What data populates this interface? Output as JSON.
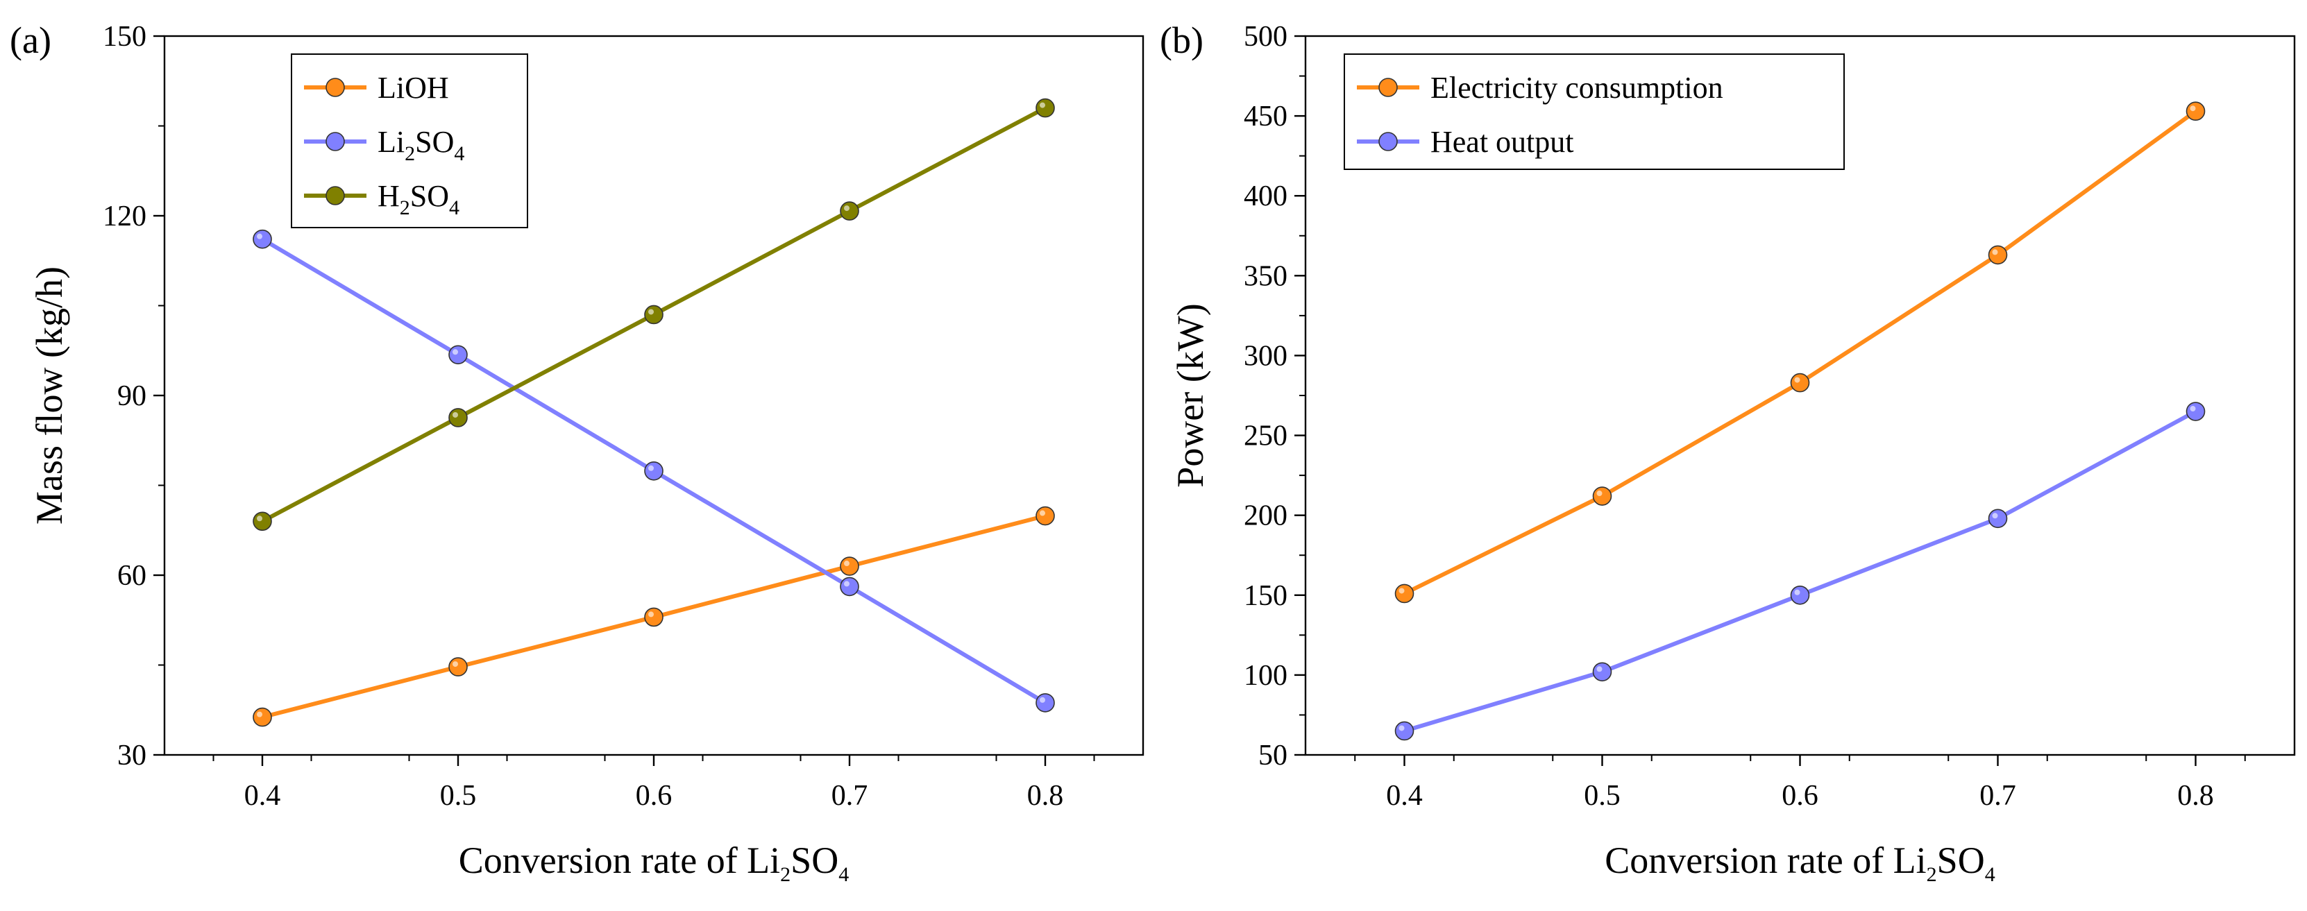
{
  "chart_data": [
    {
      "panel": "(a)",
      "type": "line",
      "x": [
        0.4,
        0.5,
        0.6,
        0.7,
        0.8
      ],
      "xlim": [
        0.35,
        0.85
      ],
      "xticks": [
        "0.4",
        "0.5",
        "0.6",
        "0.7",
        "0.8"
      ],
      "ylim": [
        30,
        150
      ],
      "yticks": [
        "30",
        "60",
        "90",
        "120",
        "150"
      ],
      "xlabel": {
        "pre": "Conversion rate of Li",
        "sub1": "2",
        "mid": "SO",
        "sub2": "4"
      },
      "ylabel": "Mass flow (kg/h)",
      "legend_position": "top-left",
      "series": [
        {
          "name": "LiOH",
          "label": {
            "pre": "LiOH"
          },
          "color": "#FF8C1A",
          "values": [
            36.3,
            44.7,
            53.0,
            61.5,
            69.9
          ]
        },
        {
          "name": "Li2SO4",
          "label": {
            "pre": "Li",
            "sub1": "2",
            "mid": "SO",
            "sub2": "4"
          },
          "color": "#8080FF",
          "values": [
            116.1,
            96.8,
            77.4,
            58.1,
            38.7
          ]
        },
        {
          "name": "H2SO4",
          "label": {
            "pre": "H",
            "sub1": "2",
            "mid": "SO",
            "sub2": "4"
          },
          "color": "#808000",
          "values": [
            69.0,
            86.3,
            103.5,
            120.8,
            138.0
          ]
        }
      ]
    },
    {
      "panel": "(b)",
      "type": "line",
      "x": [
        0.4,
        0.5,
        0.6,
        0.7,
        0.8
      ],
      "xlim": [
        0.35,
        0.85
      ],
      "xticks": [
        "0.4",
        "0.5",
        "0.6",
        "0.7",
        "0.8"
      ],
      "ylim": [
        50,
        500
      ],
      "yticks": [
        "50",
        "100",
        "150",
        "200",
        "250",
        "300",
        "350",
        "400",
        "450",
        "500"
      ],
      "xlabel": {
        "pre": "Conversion rate of Li",
        "sub1": "2",
        "mid": "SO",
        "sub2": "4"
      },
      "ylabel": "Power (kW)",
      "legend_position": "top-left",
      "series": [
        {
          "name": "Electricity consumption",
          "label": {
            "pre": "Electricity consumption"
          },
          "color": "#FF8C1A",
          "values": [
            151,
            212,
            283,
            363,
            453
          ]
        },
        {
          "name": "Heat output",
          "label": {
            "pre": "Heat output"
          },
          "color": "#8080FF",
          "values": [
            65,
            102,
            150,
            198,
            265
          ]
        }
      ]
    }
  ]
}
